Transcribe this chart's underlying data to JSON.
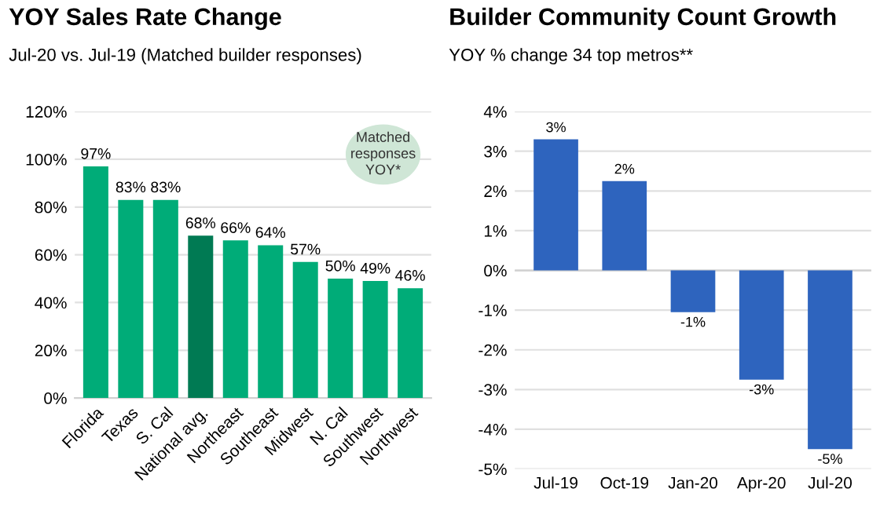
{
  "chart_data": [
    {
      "type": "bar",
      "title": "YOY Sales Rate Change",
      "subtitle": "Jul-20 vs. Jul-19 (Matched builder responses)",
      "categories": [
        "Florida",
        "Texas",
        "S. Cal",
        "National avg.",
        "Northeast",
        "Southeast",
        "Midwest",
        "N. Cal",
        "Southwest",
        "Northwest"
      ],
      "values": [
        97,
        83,
        83,
        68,
        66,
        64,
        57,
        50,
        49,
        46
      ],
      "colors": [
        "#00ac78",
        "#00ac78",
        "#00ac78",
        "#007a53",
        "#00ac78",
        "#00ac78",
        "#00ac78",
        "#00ac78",
        "#00ac78",
        "#00ac78"
      ],
      "value_labels": [
        "97%",
        "83%",
        "83%",
        "68%",
        "66%",
        "64%",
        "57%",
        "50%",
        "49%",
        "46%"
      ],
      "ylim": [
        0,
        120
      ],
      "yticks": [
        {
          "value": 0,
          "label": "0%"
        },
        {
          "value": 20,
          "label": "20%"
        },
        {
          "value": 40,
          "label": "40%"
        },
        {
          "value": 60,
          "label": "60%"
        },
        {
          "value": 80,
          "label": "80%"
        },
        {
          "value": 100,
          "label": "100%"
        },
        {
          "value": 120,
          "label": "120%"
        }
      ],
      "grid": "y",
      "annotations": [
        "Matched\nresponses\nYOY*"
      ]
    },
    {
      "type": "bar",
      "title": "Builder Community Count Growth",
      "subtitle": "YOY % change 34 top metros**",
      "categories": [
        "Jul-19",
        "Oct-19",
        "Jan-20",
        "Apr-20",
        "Jul-20"
      ],
      "values": [
        3.3,
        2.25,
        -1.05,
        -2.75,
        -4.5
      ],
      "color": "#2e64be",
      "value_labels": [
        "3%",
        "2%",
        "-1%",
        "-3%",
        "-5%"
      ],
      "ylim": [
        -5,
        4
      ],
      "yticks": [
        {
          "value": -5,
          "label": "-5%"
        },
        {
          "value": -4,
          "label": "-4%"
        },
        {
          "value": -3,
          "label": "-3%"
        },
        {
          "value": -2,
          "label": "-2%"
        },
        {
          "value": -1,
          "label": "-1%"
        },
        {
          "value": 0,
          "label": "0%"
        },
        {
          "value": 1,
          "label": "1%"
        },
        {
          "value": 2,
          "label": "2%"
        },
        {
          "value": 3,
          "label": "3%"
        },
        {
          "value": 4,
          "label": "4%"
        }
      ],
      "grid": "y"
    }
  ]
}
